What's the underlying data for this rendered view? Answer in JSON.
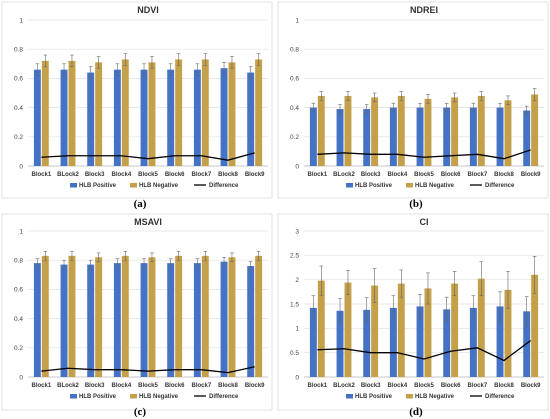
{
  "colors": {
    "positive": "#4472C4",
    "negative": "#C5A04B",
    "difference": "#000000",
    "grid": "#e0e0e0"
  },
  "legend": {
    "positive": "HLB Positive",
    "negative": "HLB Negative",
    "difference": "Difference"
  },
  "chart_data": [
    {
      "type": "bar",
      "title": "NDVI",
      "panel_label": "(a)",
      "categories": [
        "Block1",
        "BLock2",
        "Block3",
        "Block4",
        "Block5",
        "Block6",
        "Block7",
        "Block8",
        "Block9"
      ],
      "ylim": [
        0,
        1
      ],
      "yticks": [
        0,
        0.2,
        0.4,
        0.6,
        0.8,
        1
      ],
      "yticklabels": [
        "0",
        "0.2",
        "0.4",
        "0.6",
        "0.8",
        "1"
      ],
      "grid": true,
      "legend_position": "bottom",
      "series": [
        {
          "name": "HLB Positive",
          "values": [
            0.66,
            0.66,
            0.64,
            0.66,
            0.66,
            0.66,
            0.66,
            0.67,
            0.64
          ],
          "errors": [
            0.04,
            0.04,
            0.04,
            0.04,
            0.04,
            0.04,
            0.04,
            0.04,
            0.04
          ]
        },
        {
          "name": "HLB Negative",
          "values": [
            0.72,
            0.72,
            0.71,
            0.73,
            0.71,
            0.73,
            0.73,
            0.71,
            0.73
          ],
          "errors": [
            0.04,
            0.04,
            0.04,
            0.04,
            0.04,
            0.04,
            0.04,
            0.04,
            0.04
          ]
        },
        {
          "name": "Difference",
          "values": [
            0.06,
            0.07,
            0.07,
            0.07,
            0.05,
            0.07,
            0.07,
            0.04,
            0.09
          ]
        }
      ]
    },
    {
      "type": "bar",
      "title": "NDREI",
      "panel_label": "(b)",
      "categories": [
        "Block1",
        "BLock2",
        "Block3",
        "Block4",
        "Block5",
        "Block6",
        "Block7",
        "Block8",
        "Block9"
      ],
      "ylim": [
        0,
        1
      ],
      "yticks": [
        0,
        0.2,
        0.4,
        0.6,
        0.8,
        1
      ],
      "yticklabels": [
        "0",
        "0.2",
        "0.4",
        "0.6",
        "0.8",
        "1"
      ],
      "grid": true,
      "legend_position": "bottom",
      "series": [
        {
          "name": "HLB Positive",
          "values": [
            0.4,
            0.39,
            0.39,
            0.4,
            0.4,
            0.4,
            0.4,
            0.4,
            0.38
          ],
          "errors": [
            0.03,
            0.03,
            0.03,
            0.03,
            0.03,
            0.03,
            0.03,
            0.03,
            0.03
          ]
        },
        {
          "name": "HLB Negative",
          "values": [
            0.48,
            0.48,
            0.47,
            0.48,
            0.46,
            0.47,
            0.48,
            0.45,
            0.49
          ],
          "errors": [
            0.03,
            0.03,
            0.03,
            0.03,
            0.03,
            0.03,
            0.03,
            0.03,
            0.04
          ]
        },
        {
          "name": "Difference",
          "values": [
            0.08,
            0.09,
            0.08,
            0.08,
            0.06,
            0.07,
            0.08,
            0.05,
            0.11
          ]
        }
      ]
    },
    {
      "type": "bar",
      "title": "MSAVI",
      "panel_label": "(c)",
      "categories": [
        "Block1",
        "BLock2",
        "Block3",
        "Block4",
        "Block5",
        "Block6",
        "Block7",
        "Block8",
        "Block9"
      ],
      "ylim": [
        0,
        1
      ],
      "yticks": [
        0,
        0.2,
        0.4,
        0.6,
        0.8,
        1
      ],
      "yticklabels": [
        "0",
        "0.2",
        "0.4",
        "0.6",
        "0.8",
        "1"
      ],
      "grid": true,
      "legend_position": "bottom",
      "series": [
        {
          "name": "HLB Positive",
          "values": [
            0.78,
            0.77,
            0.77,
            0.78,
            0.78,
            0.78,
            0.78,
            0.79,
            0.76
          ],
          "errors": [
            0.03,
            0.03,
            0.03,
            0.03,
            0.03,
            0.03,
            0.03,
            0.03,
            0.03
          ]
        },
        {
          "name": "HLB Negative",
          "values": [
            0.83,
            0.83,
            0.82,
            0.83,
            0.82,
            0.83,
            0.83,
            0.82,
            0.83
          ],
          "errors": [
            0.03,
            0.03,
            0.03,
            0.03,
            0.03,
            0.03,
            0.03,
            0.03,
            0.03
          ]
        },
        {
          "name": "Difference",
          "values": [
            0.04,
            0.06,
            0.05,
            0.05,
            0.04,
            0.05,
            0.05,
            0.03,
            0.07
          ]
        }
      ]
    },
    {
      "type": "bar",
      "title": "CI",
      "panel_label": "(d)",
      "categories": [
        "Block1",
        "BLock2",
        "Block3",
        "Block4",
        "Block5",
        "Block6",
        "Block7",
        "Block8",
        "Block9"
      ],
      "ylim": [
        0,
        3
      ],
      "yticks": [
        0,
        0.5,
        1,
        1.5,
        2,
        2.5,
        3
      ],
      "yticklabels": [
        "0",
        "0.5",
        "1",
        "1.5",
        "2",
        "2.5",
        "3"
      ],
      "grid": true,
      "legend_position": "bottom",
      "series": [
        {
          "name": "HLB Positive",
          "values": [
            1.42,
            1.36,
            1.38,
            1.42,
            1.45,
            1.39,
            1.42,
            1.45,
            1.35
          ],
          "errors": [
            0.25,
            0.25,
            0.25,
            0.25,
            0.25,
            0.25,
            0.25,
            0.3,
            0.3
          ]
        },
        {
          "name": "HLB Negative",
          "values": [
            1.98,
            1.94,
            1.88,
            1.92,
            1.82,
            1.92,
            2.02,
            1.79,
            2.1
          ],
          "errors": [
            0.3,
            0.25,
            0.35,
            0.28,
            0.32,
            0.25,
            0.35,
            0.38,
            0.38
          ]
        },
        {
          "name": "Difference",
          "values": [
            0.56,
            0.58,
            0.5,
            0.5,
            0.37,
            0.53,
            0.6,
            0.34,
            0.75
          ]
        }
      ]
    }
  ]
}
